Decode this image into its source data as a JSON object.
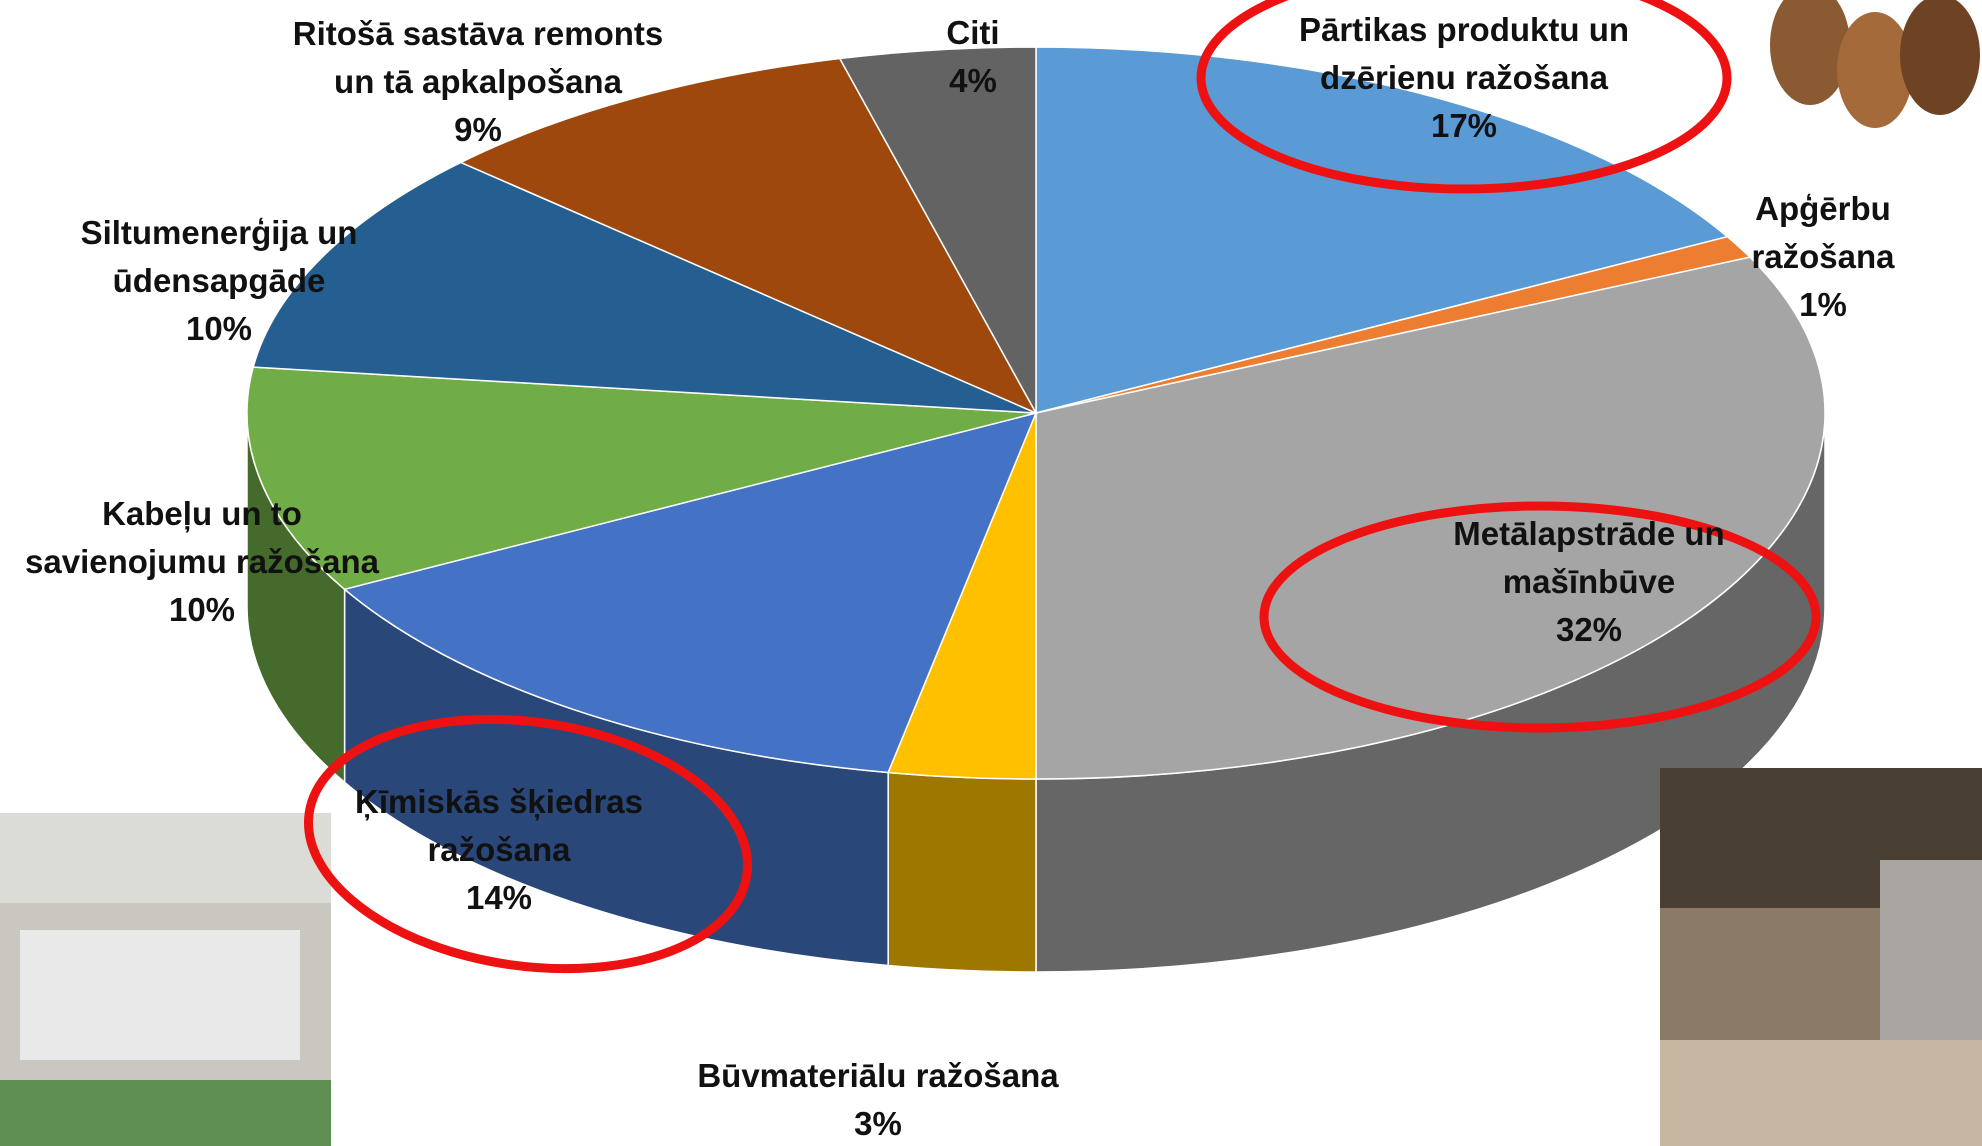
{
  "chart_data": {
    "type": "pie3d",
    "categories": [
      "Pārtikas produktu un\ndzērienu ražošana",
      "Apģērbu ražošana",
      "Metālapstrāde un\nmašīnbūve",
      "Būvmateriālu ražošana",
      "Ķīmiskās šķiedras\nražošana",
      "Kabeļu un to\nsavienojumu ražošana",
      "Siltumenerģija un\nūdensapgāde",
      "Ritošā sastāva remonts\nun tā apkalpošana",
      "Citi"
    ],
    "values": [
      17,
      1,
      32,
      3,
      14,
      10,
      10,
      9,
      4
    ],
    "value_labels": [
      "17%",
      "1%",
      "32%",
      "3%",
      "14%",
      "10%",
      "10%",
      "9%",
      "4%"
    ],
    "colors": [
      "#5b9bd5",
      "#ed7d31",
      "#a5a5a5",
      "#ffc000",
      "#4472c4",
      "#70ad47",
      "#255e91",
      "#9e480e",
      "#636363"
    ]
  }
}
